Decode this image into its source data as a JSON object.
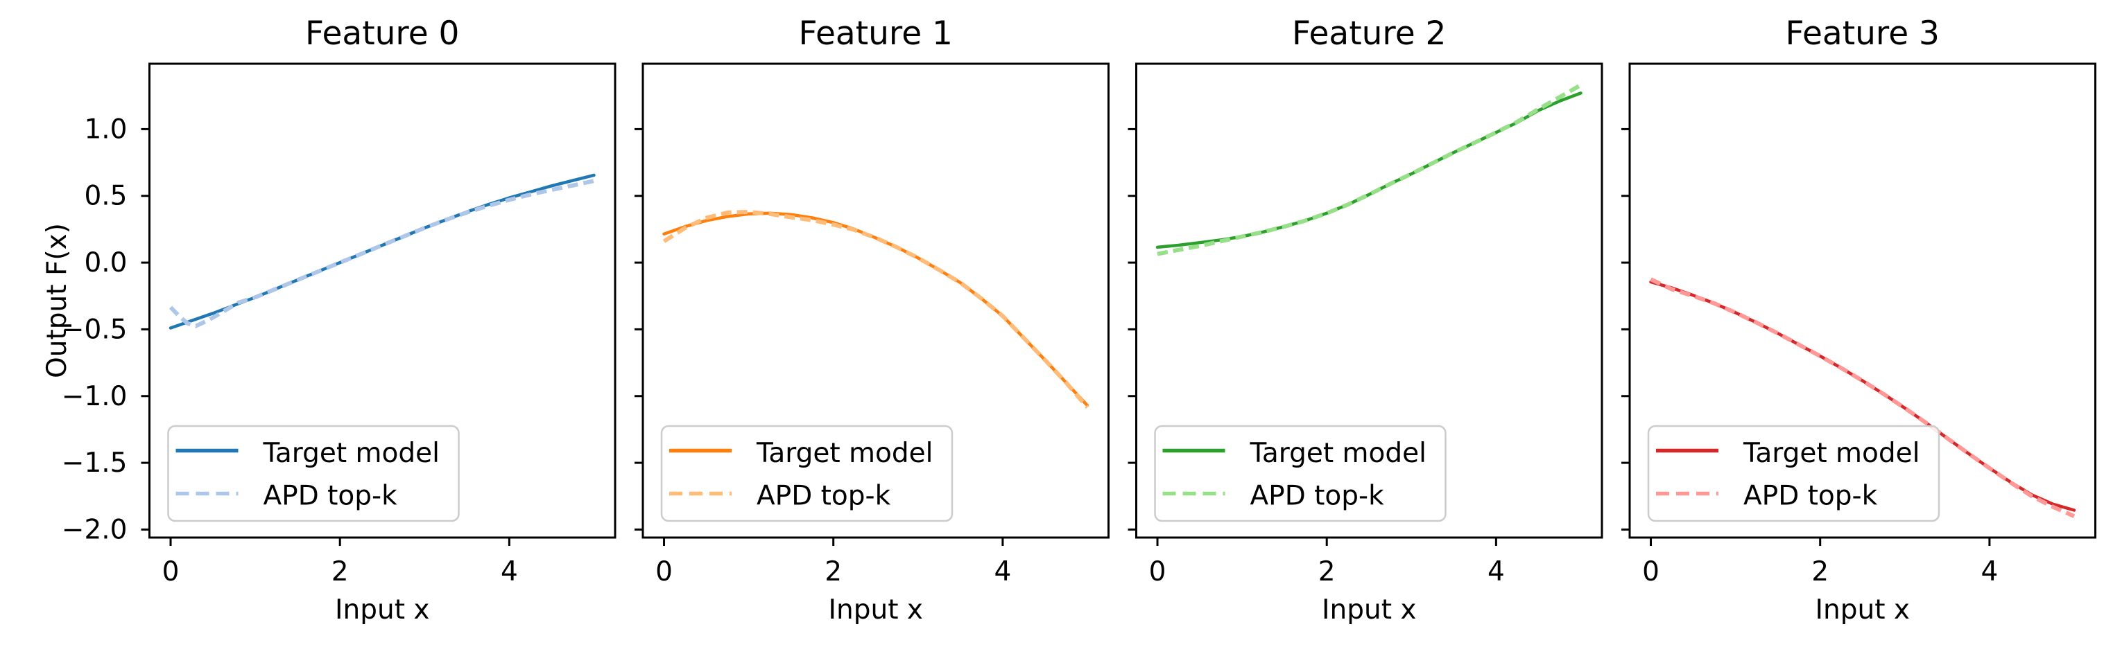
{
  "figure": {
    "background": "#ffffff"
  },
  "chart_data": [
    {
      "type": "line",
      "title": "Feature 0",
      "xlabel": "Input x",
      "ylabel": "Output F(x)",
      "xlim": [
        -0.25,
        5.25
      ],
      "ylim": [
        -2.06,
        1.49
      ],
      "xticks": [
        0,
        2,
        4
      ],
      "xtick_labels": [
        "0",
        "2",
        "4"
      ],
      "yticks": [
        1.0,
        0.5,
        0.0,
        -0.5,
        -1.0,
        -1.5,
        -2.0
      ],
      "ytick_labels": [
        "1.0",
        "0.5",
        "0.0",
        "−0.5",
        "−1.0",
        "−1.5",
        "−2.0"
      ],
      "show_ytick_labels": true,
      "legend_location": "lower left",
      "grid": false,
      "series": [
        {
          "name": "Target model",
          "color": "#1f77b4",
          "linestyle": "solid",
          "x": [
            0,
            0.25,
            0.5,
            0.75,
            1,
            1.25,
            1.5,
            1.75,
            2,
            2.25,
            2.5,
            2.75,
            3,
            3.25,
            3.5,
            3.75,
            4,
            4.25,
            4.5,
            4.75,
            5
          ],
          "y": [
            -0.49,
            -0.435,
            -0.38,
            -0.32,
            -0.26,
            -0.195,
            -0.13,
            -0.065,
            0,
            0.065,
            0.13,
            0.195,
            0.26,
            0.32,
            0.38,
            0.435,
            0.485,
            0.53,
            0.575,
            0.615,
            0.655
          ]
        },
        {
          "name": "APD top-k",
          "color": "#aec7e8",
          "linestyle": "dashed",
          "x": [
            0,
            0.1,
            0.2,
            0.3,
            0.45,
            0.6,
            0.8,
            1,
            1.25,
            1.5,
            1.75,
            2,
            2.25,
            2.5,
            2.75,
            3,
            3.25,
            3.5,
            3.75,
            4,
            4.25,
            4.5,
            4.75,
            5
          ],
          "y": [
            -0.335,
            -0.4,
            -0.455,
            -0.475,
            -0.43,
            -0.375,
            -0.3,
            -0.26,
            -0.195,
            -0.13,
            -0.065,
            0,
            0.065,
            0.13,
            0.195,
            0.26,
            0.32,
            0.375,
            0.425,
            0.47,
            0.51,
            0.545,
            0.578,
            0.612
          ]
        }
      ]
    },
    {
      "type": "line",
      "title": "Feature 1",
      "xlabel": "Input x",
      "ylabel": "",
      "xlim": [
        -0.25,
        5.25
      ],
      "ylim": [
        -2.06,
        1.49
      ],
      "xticks": [
        0,
        2,
        4
      ],
      "xtick_labels": [
        "0",
        "2",
        "4"
      ],
      "yticks": [
        1.0,
        0.5,
        0.0,
        -0.5,
        -1.0,
        -1.5,
        -2.0
      ],
      "show_ytick_labels": false,
      "legend_location": "lower left",
      "grid": false,
      "series": [
        {
          "name": "Target model",
          "color": "#ff7f0e",
          "linestyle": "solid",
          "x": [
            0,
            0.25,
            0.5,
            0.75,
            1,
            1.25,
            1.5,
            1.75,
            2,
            2.25,
            2.5,
            2.75,
            3,
            3.25,
            3.5,
            3.75,
            4,
            4.25,
            4.5,
            4.75,
            5
          ],
          "y": [
            0.215,
            0.27,
            0.315,
            0.345,
            0.365,
            0.37,
            0.36,
            0.335,
            0.3,
            0.25,
            0.185,
            0.115,
            0.035,
            -0.055,
            -0.15,
            -0.27,
            -0.4,
            -0.565,
            -0.73,
            -0.9,
            -1.07
          ]
        },
        {
          "name": "APD top-k",
          "color": "#ffbb78",
          "linestyle": "dashed",
          "x": [
            0,
            0.25,
            0.5,
            0.75,
            1,
            1.25,
            1.5,
            1.75,
            2,
            2.25,
            2.5,
            2.75,
            3,
            3.25,
            3.5,
            3.75,
            4,
            4.25,
            4.5,
            4.75,
            5
          ],
          "y": [
            0.16,
            0.26,
            0.335,
            0.375,
            0.38,
            0.365,
            0.34,
            0.318,
            0.285,
            0.245,
            0.185,
            0.115,
            0.035,
            -0.055,
            -0.15,
            -0.27,
            -0.4,
            -0.565,
            -0.73,
            -0.9,
            -1.085
          ]
        }
      ]
    },
    {
      "type": "line",
      "title": "Feature 2",
      "xlabel": "Input x",
      "ylabel": "",
      "xlim": [
        -0.25,
        5.25
      ],
      "ylim": [
        -2.06,
        1.49
      ],
      "xticks": [
        0,
        2,
        4
      ],
      "xtick_labels": [
        "0",
        "2",
        "4"
      ],
      "yticks": [
        1.0,
        0.5,
        0.0,
        -0.5,
        -1.0,
        -1.5,
        -2.0
      ],
      "show_ytick_labels": false,
      "legend_location": "lower left",
      "grid": false,
      "series": [
        {
          "name": "Target model",
          "color": "#2ca02c",
          "linestyle": "solid",
          "x": [
            0,
            0.25,
            0.5,
            0.75,
            1,
            1.25,
            1.5,
            1.75,
            2,
            2.25,
            2.5,
            2.75,
            3,
            3.25,
            3.5,
            3.75,
            4,
            4.25,
            4.5,
            4.75,
            5
          ],
          "y": [
            0.115,
            0.13,
            0.15,
            0.17,
            0.195,
            0.23,
            0.27,
            0.315,
            0.37,
            0.435,
            0.51,
            0.59,
            0.665,
            0.745,
            0.825,
            0.9,
            0.975,
            1.05,
            1.14,
            1.21,
            1.27
          ]
        },
        {
          "name": "APD top-k",
          "color": "#98df8a",
          "linestyle": "dashed",
          "x": [
            0,
            0.25,
            0.5,
            0.75,
            1,
            1.25,
            1.5,
            1.75,
            2,
            2.25,
            2.5,
            2.75,
            3,
            3.25,
            3.5,
            3.75,
            4,
            4.25,
            4.5,
            4.75,
            5
          ],
          "y": [
            0.065,
            0.095,
            0.125,
            0.16,
            0.195,
            0.23,
            0.27,
            0.315,
            0.37,
            0.435,
            0.51,
            0.59,
            0.665,
            0.745,
            0.825,
            0.9,
            0.975,
            1.055,
            1.15,
            1.24,
            1.33
          ]
        }
      ]
    },
    {
      "type": "line",
      "title": "Feature 3",
      "xlabel": "Input x",
      "ylabel": "",
      "xlim": [
        -0.25,
        5.25
      ],
      "ylim": [
        -2.06,
        1.49
      ],
      "xticks": [
        0,
        2,
        4
      ],
      "xtick_labels": [
        "0",
        "2",
        "4"
      ],
      "yticks": [
        1.0,
        0.5,
        0.0,
        -0.5,
        -1.0,
        -1.5,
        -2.0
      ],
      "show_ytick_labels": false,
      "legend_location": "lower left",
      "grid": false,
      "series": [
        {
          "name": "Target model",
          "color": "#d62728",
          "linestyle": "solid",
          "x": [
            0,
            0.25,
            0.5,
            0.75,
            1,
            1.25,
            1.5,
            1.75,
            2,
            2.25,
            2.5,
            2.75,
            3,
            3.25,
            3.5,
            3.75,
            4,
            4.25,
            4.5,
            4.75,
            5
          ],
          "y": [
            -0.145,
            -0.19,
            -0.245,
            -0.305,
            -0.375,
            -0.45,
            -0.53,
            -0.615,
            -0.7,
            -0.79,
            -0.885,
            -0.985,
            -1.09,
            -1.2,
            -1.315,
            -1.43,
            -1.54,
            -1.645,
            -1.74,
            -1.81,
            -1.855
          ]
        },
        {
          "name": "APD top-k",
          "color": "#ff9896",
          "linestyle": "dashed",
          "x": [
            0,
            0.25,
            0.5,
            0.75,
            1,
            1.25,
            1.5,
            1.75,
            2,
            2.25,
            2.5,
            2.75,
            3,
            3.25,
            3.5,
            3.75,
            4,
            4.25,
            4.5,
            4.75,
            5
          ],
          "y": [
            -0.125,
            -0.2,
            -0.25,
            -0.305,
            -0.375,
            -0.45,
            -0.53,
            -0.615,
            -0.7,
            -0.79,
            -0.885,
            -0.985,
            -1.09,
            -1.2,
            -1.315,
            -1.43,
            -1.54,
            -1.648,
            -1.75,
            -1.83,
            -1.9
          ]
        }
      ]
    }
  ]
}
